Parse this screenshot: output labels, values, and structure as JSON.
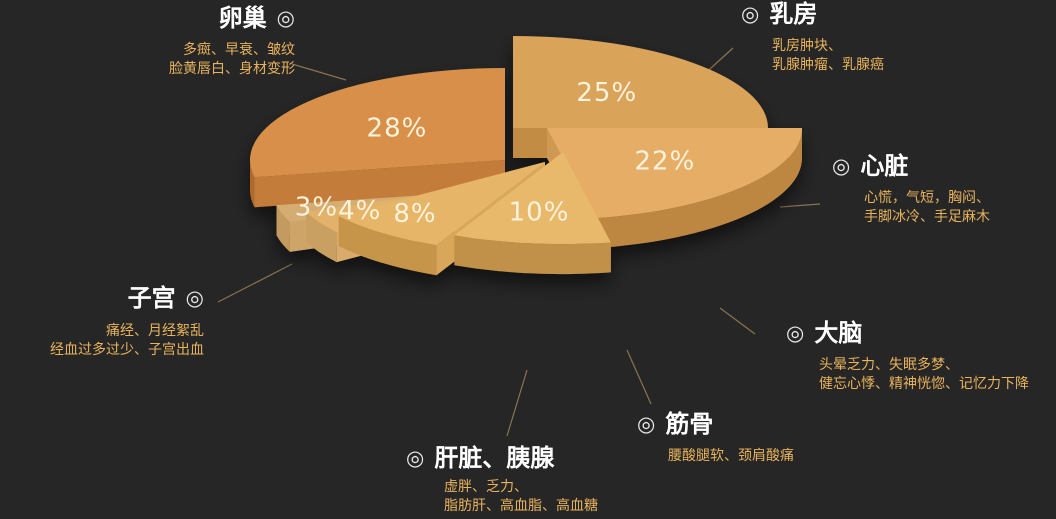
{
  "chart_data": {
    "type": "pie",
    "slices": [
      {
        "label": "卵巢",
        "value": 25,
        "value_label": "25%",
        "desc": [
          "多癍、早衰、皱纹",
          "脸黄唇白、身材变形"
        ]
      },
      {
        "label": "乳房",
        "value": 22,
        "value_label": "22%",
        "desc": [
          "乳房肿块、",
          "乳腺肿瘤、乳腺癌"
        ]
      },
      {
        "label": "心脏",
        "value": 10,
        "value_label": "10%",
        "desc": [
          "心慌，气短，胸闷、",
          "手脚冰冷、手足麻木"
        ]
      },
      {
        "label": "大脑",
        "value": 8,
        "value_label": "8%",
        "desc": [
          "头晕乏力、失眠多梦、",
          "健忘心悸、精神恍惚、记忆力下降"
        ]
      },
      {
        "label": "筋骨",
        "value": 4,
        "value_label": "4%",
        "desc": [
          "腰酸腿软、颈肩酸痛"
        ]
      },
      {
        "label": "肝脏、胰腺",
        "value": 3,
        "value_label": "3%",
        "desc": [
          "虚胖、乏力、",
          "脂肪肝、高血脂、高血糖"
        ]
      },
      {
        "label": "子宫",
        "value": 28,
        "value_label": "28%",
        "desc": [
          "痛经、月经絮乱",
          "经血过多过少、子宫出血"
        ]
      }
    ]
  },
  "bullet_symbol": "◎",
  "colors": {
    "background": "#262626",
    "label_title": "#ffffff",
    "label_desc": "#e8b35d",
    "leader_line": "#8a7350"
  }
}
